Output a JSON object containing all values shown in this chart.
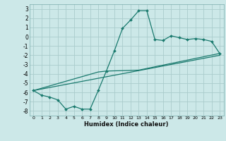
{
  "xlabel": "Humidex (Indice chaleur)",
  "background_color": "#cce8e8",
  "grid_color": "#aacccc",
  "line_color": "#1a7a6e",
  "xlim": [
    -0.5,
    23.5
  ],
  "ylim": [
    -8.5,
    3.5
  ],
  "xticks": [
    0,
    1,
    2,
    3,
    4,
    5,
    6,
    7,
    8,
    9,
    10,
    11,
    12,
    13,
    14,
    15,
    16,
    17,
    18,
    19,
    20,
    21,
    22,
    23
  ],
  "yticks": [
    -8,
    -7,
    -6,
    -5,
    -4,
    -3,
    -2,
    -1,
    0,
    1,
    2,
    3
  ],
  "curve1_x": [
    0,
    1,
    2,
    3,
    4,
    5,
    6,
    7,
    8,
    9,
    10,
    11,
    12,
    13,
    14,
    15,
    16,
    17,
    18,
    19,
    20,
    21,
    22,
    23
  ],
  "curve1_y": [
    -5.8,
    -6.3,
    -6.5,
    -6.8,
    -7.8,
    -7.5,
    -7.8,
    -7.8,
    -5.8,
    -3.7,
    -1.5,
    0.9,
    1.8,
    2.8,
    2.8,
    -0.3,
    -0.4,
    0.1,
    -0.1,
    -0.3,
    -0.2,
    -0.3,
    -0.5,
    -1.8
  ],
  "curve2_x": [
    0,
    23
  ],
  "curve2_y": [
    -5.8,
    -2.0
  ],
  "curve3_x": [
    0,
    8,
    9,
    13,
    23
  ],
  "curve3_y": [
    -5.8,
    -3.8,
    -3.7,
    -3.6,
    -1.8
  ]
}
